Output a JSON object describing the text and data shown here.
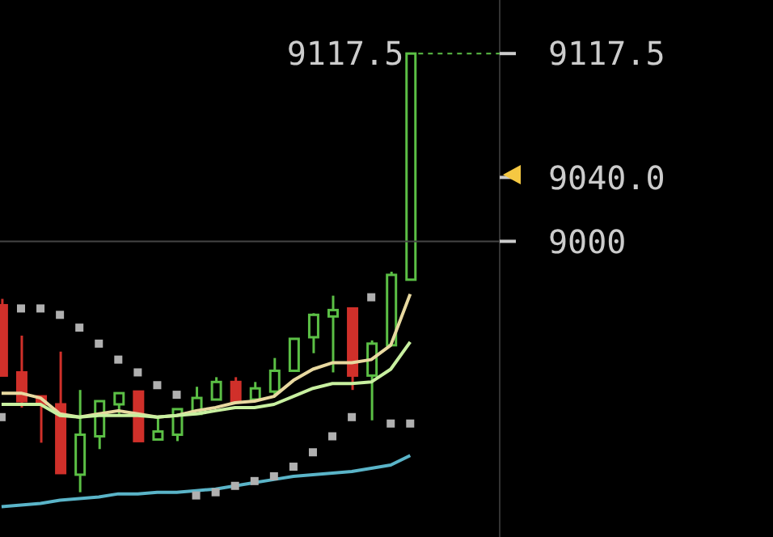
{
  "chart_data": {
    "type": "candlestick",
    "categories": [
      null,
      null,
      null,
      null,
      null,
      null,
      null,
      null,
      null,
      null,
      null,
      null,
      null,
      null,
      null,
      null,
      null,
      null,
      null,
      null,
      null,
      null,
      null,
      null,
      null,
      null
    ],
    "series": [
      {
        "ohlc": [
          [
            8960,
            8964,
            8916,
            8916
          ],
          [
            8918,
            8941,
            8896,
            8900
          ],
          [
            8903,
            8903,
            8874,
            8898
          ],
          [
            8898,
            8931,
            8855,
            8855
          ],
          [
            8854,
            8907,
            8843,
            8879
          ],
          [
            8878,
            8900,
            8870,
            8900
          ],
          [
            8898,
            8905,
            8892,
            8905
          ],
          [
            8906,
            8906,
            8875,
            8875
          ],
          [
            8876,
            8890,
            8876,
            8881
          ],
          [
            8879,
            8895,
            8875,
            8895
          ],
          [
            8892,
            8909,
            8892,
            8902
          ],
          [
            8901,
            8915,
            8901,
            8912
          ],
          [
            8912,
            8915,
            8900,
            8900
          ],
          [
            8901,
            8912,
            8900,
            8908
          ],
          [
            8906,
            8927,
            8903,
            8919
          ],
          [
            8919,
            8939,
            8919,
            8939
          ],
          [
            8940,
            8955,
            8930,
            8954
          ],
          [
            8953,
            8966,
            8918,
            8957
          ],
          [
            8958,
            8958,
            8907,
            8916
          ],
          [
            8916,
            8938,
            8888,
            8936
          ],
          [
            8935,
            8981,
            8935,
            8979
          ],
          [
            8976,
            9117.5,
            8976,
            9117.5
          ],
          null,
          null,
          null,
          null
        ],
        "colors": [
          "#d0302a",
          "#d0302a",
          "#d0302a",
          "#d0302a",
          "#5bbf45",
          "#5bbf45",
          "#5bbf45",
          "#d0302a",
          "#5bbf45",
          "#5bbf45",
          "#5bbf45",
          "#5bbf45",
          "#d0302a",
          "#5bbf45",
          "#5bbf45",
          "#5bbf45",
          "#5bbf45",
          "#5bbf45",
          "#d0302a",
          "#5bbf45",
          "#5bbf45",
          "#5bbf45",
          null,
          null,
          null,
          null
        ]
      },
      {
        "type": "line",
        "color": "#e8d9a0",
        "values": [
          8905,
          8905,
          8902,
          8892,
          8890,
          8892,
          8894,
          8892,
          8890,
          8891,
          8894,
          8896,
          8899,
          8900,
          8903,
          8913,
          8920,
          8924,
          8924,
          8926,
          8935,
          8967,
          null,
          null,
          null,
          null
        ]
      },
      {
        "type": "line",
        "color": "#c8f0a0",
        "values": [
          8898,
          8898,
          8898,
          8891,
          8890,
          8891,
          8891,
          8891,
          8890,
          8891,
          8892,
          8894,
          8896,
          8896,
          8898,
          8903,
          8908,
          8911,
          8911,
          8912,
          8920,
          8937,
          null,
          null,
          null,
          null
        ]
      },
      {
        "type": "line",
        "color": "#5ab4c8",
        "values": [
          8834,
          8835,
          8836,
          8838,
          8839,
          8840,
          8842,
          8842,
          8843,
          8843,
          8844,
          8845,
          8847,
          8849,
          8851,
          8853,
          8854,
          8855,
          8856,
          8858,
          8860,
          8866,
          null,
          null,
          null,
          null
        ]
      },
      {
        "type": "scatter",
        "color": "#b0b0b0",
        "marker": "square",
        "values": [
          8890,
          8958,
          8958,
          8954,
          8946,
          8936,
          8926,
          8918,
          8910,
          8904,
          8841,
          8843,
          8847,
          8850,
          8853,
          8859,
          8868,
          8878,
          8890,
          8965,
          8886,
          8886,
          null,
          null,
          null,
          null
        ]
      }
    ],
    "ylim": [
      8815,
      9151
    ],
    "yticks": [
      9117.5,
      {
        "value": 9040,
        "label": "9040.0"
      },
      9000
    ],
    "tick_labels": "y",
    "legend": false,
    "grid": false,
    "ref_lines": [
      {
        "axis": "y",
        "value": 9000,
        "color": "#444444"
      }
    ],
    "annotations": [
      "9117.5"
    ]
  }
}
